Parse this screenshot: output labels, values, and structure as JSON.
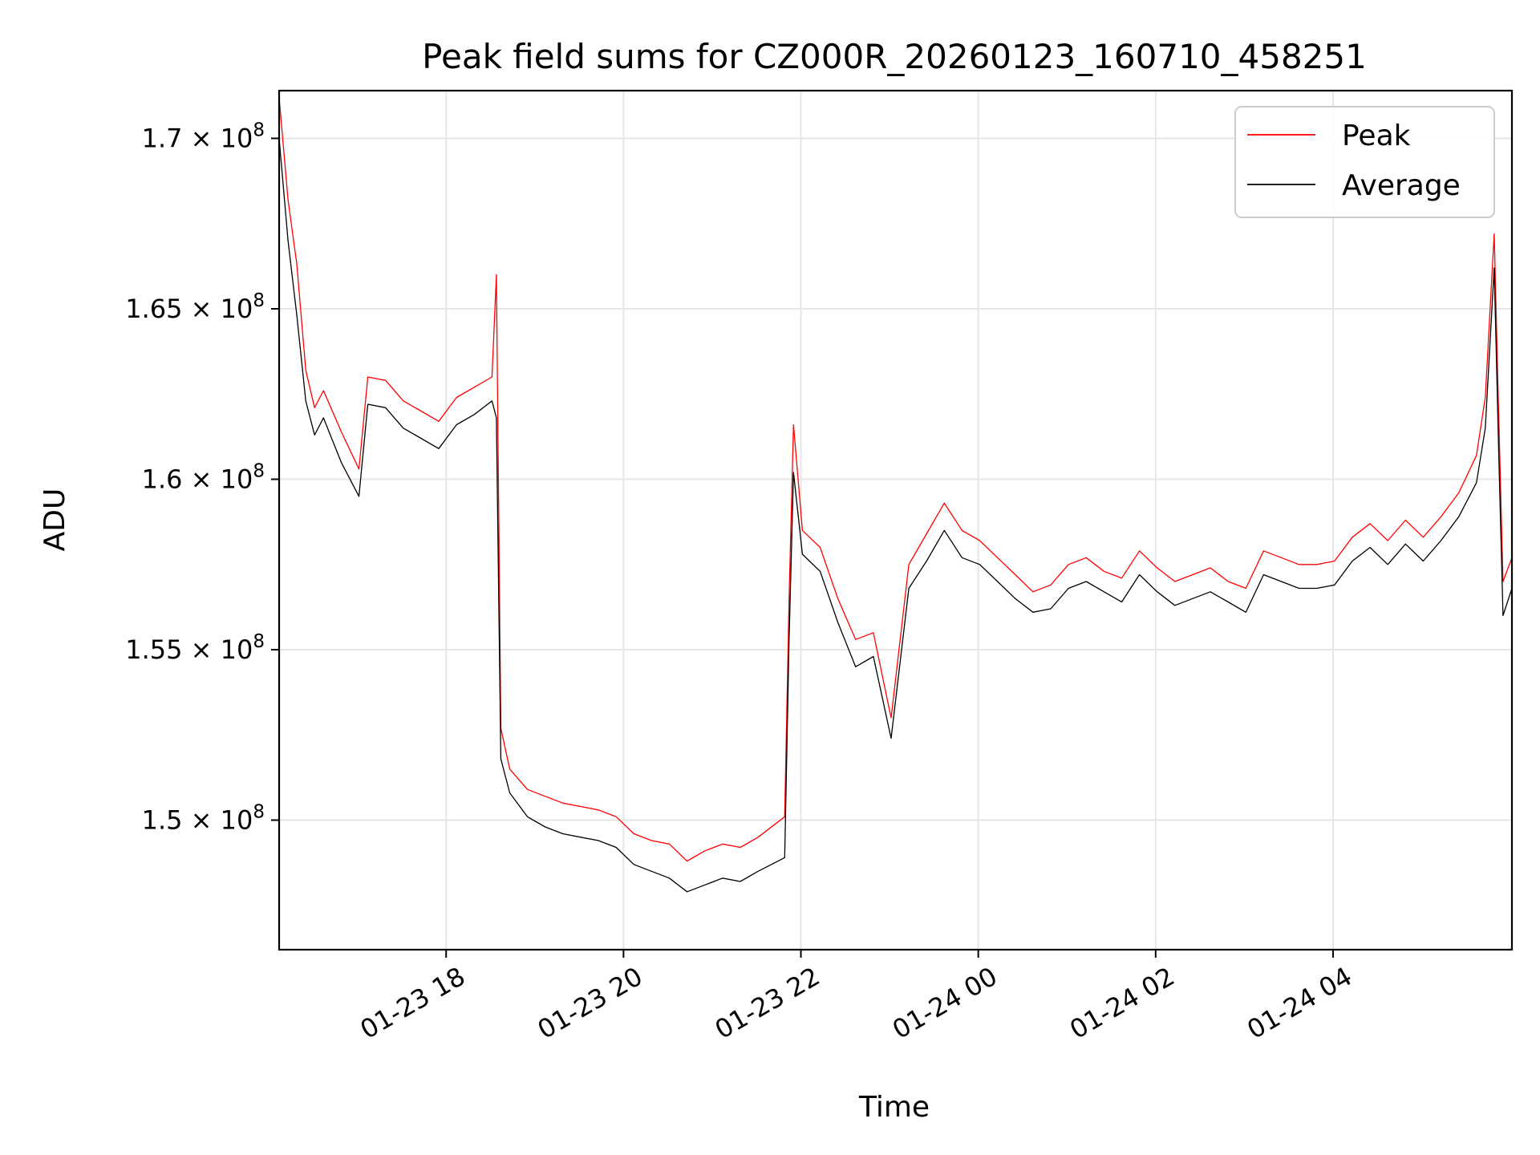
{
  "chart_data": {
    "type": "line",
    "title": "Peak field sums for CZ000R_20260123_160710_458251",
    "xlabel": "Time",
    "ylabel": "ADU",
    "x_unit": "hours since 2026-01-23 16:07",
    "xlim": [
      0,
      13.9
    ],
    "ylim": [
      146200000,
      171400000
    ],
    "grid": true,
    "legend_position": "top-right",
    "x_ticks": [
      {
        "value": 1.883,
        "label": "01-23 18"
      },
      {
        "value": 3.883,
        "label": "01-23 20"
      },
      {
        "value": 5.883,
        "label": "01-23 22"
      },
      {
        "value": 7.883,
        "label": "01-24 00"
      },
      {
        "value": 9.883,
        "label": "01-24 02"
      },
      {
        "value": 11.883,
        "label": "01-24 04"
      }
    ],
    "y_ticks": [
      {
        "value": 150000000,
        "mantissa": "1.5",
        "exponent": "8"
      },
      {
        "value": 155000000,
        "mantissa": "1.55",
        "exponent": "8"
      },
      {
        "value": 160000000,
        "mantissa": "1.6",
        "exponent": "8"
      },
      {
        "value": 165000000,
        "mantissa": "1.65",
        "exponent": "8"
      },
      {
        "value": 170000000,
        "mantissa": "1.7",
        "exponent": "8"
      }
    ],
    "tick_prefix": "× 10",
    "series": [
      {
        "name": "Peak",
        "color": "#ff0000"
      },
      {
        "name": "Average",
        "color": "#000000"
      }
    ],
    "x": [
      0.0,
      0.1,
      0.2,
      0.3,
      0.4,
      0.5,
      0.7,
      0.9,
      1.0,
      1.2,
      1.4,
      1.6,
      1.8,
      2.0,
      2.2,
      2.4,
      2.45,
      2.5,
      2.6,
      2.8,
      3.0,
      3.2,
      3.4,
      3.6,
      3.8,
      4.0,
      4.2,
      4.4,
      4.6,
      4.8,
      5.0,
      5.2,
      5.4,
      5.7,
      5.75,
      5.8,
      5.9,
      6.1,
      6.3,
      6.5,
      6.7,
      6.9,
      7.1,
      7.3,
      7.5,
      7.7,
      7.9,
      8.1,
      8.3,
      8.5,
      8.7,
      8.9,
      9.1,
      9.3,
      9.5,
      9.7,
      9.9,
      10.1,
      10.3,
      10.5,
      10.7,
      10.9,
      11.1,
      11.3,
      11.5,
      11.7,
      11.9,
      12.1,
      12.3,
      12.5,
      12.7,
      12.9,
      13.1,
      13.3,
      13.5,
      13.6,
      13.7,
      13.75,
      13.8,
      13.9
    ],
    "peak_values": [
      171200000,
      168200000,
      166300000,
      163200000,
      162100000,
      162600000,
      161400000,
      160300000,
      163000000,
      162900000,
      162300000,
      162000000,
      161700000,
      162400000,
      162700000,
      163000000,
      166000000,
      152700000,
      151500000,
      150900000,
      150700000,
      150500000,
      150400000,
      150300000,
      150100000,
      149600000,
      149400000,
      149300000,
      148800000,
      149100000,
      149300000,
      149200000,
      149500000,
      150100000,
      156500000,
      161600000,
      158500000,
      158000000,
      156500000,
      155300000,
      155500000,
      153000000,
      157500000,
      158400000,
      159300000,
      158500000,
      158200000,
      157700000,
      157200000,
      156700000,
      156900000,
      157500000,
      157700000,
      157300000,
      157100000,
      157900000,
      157400000,
      157000000,
      157200000,
      157400000,
      157000000,
      156800000,
      157900000,
      157700000,
      157500000,
      157500000,
      157600000,
      158300000,
      158700000,
      158200000,
      158800000,
      158300000,
      158900000,
      159600000,
      160700000,
      162400000,
      167200000,
      162000000,
      157000000,
      157700000
    ],
    "average_values": [
      170000000,
      167000000,
      164800000,
      162300000,
      161300000,
      161800000,
      160500000,
      159500000,
      162200000,
      162100000,
      161500000,
      161200000,
      160900000,
      161600000,
      161900000,
      162300000,
      161800000,
      151800000,
      150800000,
      150100000,
      149800000,
      149600000,
      149500000,
      149400000,
      149200000,
      148700000,
      148500000,
      148300000,
      147900000,
      148100000,
      148300000,
      148200000,
      148500000,
      148900000,
      155300000,
      160200000,
      157800000,
      157300000,
      155800000,
      154500000,
      154800000,
      152400000,
      156800000,
      157600000,
      158500000,
      157700000,
      157500000,
      157000000,
      156500000,
      156100000,
      156200000,
      156800000,
      157000000,
      156700000,
      156400000,
      157200000,
      156700000,
      156300000,
      156500000,
      156700000,
      156400000,
      156100000,
      157200000,
      157000000,
      156800000,
      156800000,
      156900000,
      157600000,
      158000000,
      157500000,
      158100000,
      157600000,
      158200000,
      158900000,
      159900000,
      161500000,
      166200000,
      160900000,
      156000000,
      156800000
    ]
  }
}
